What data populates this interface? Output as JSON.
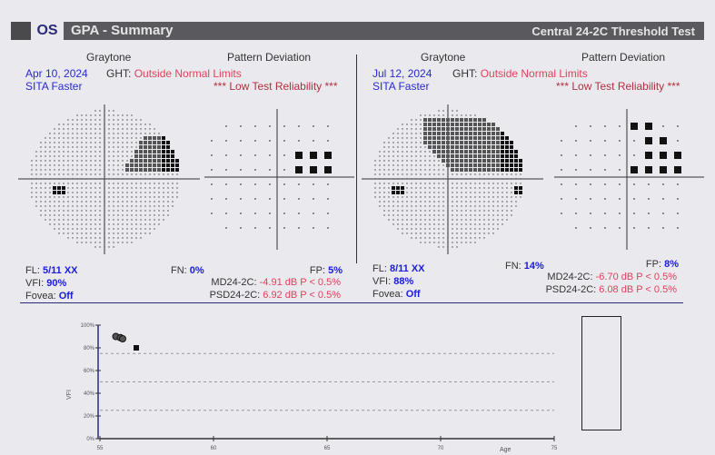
{
  "header": {
    "eye": "OS",
    "title": "GPA - Summary",
    "test": "Central 24-2C Threshold Test"
  },
  "exams": [
    {
      "graytone_label": "Graytone",
      "pd_label": "Pattern Deviation",
      "date": "Apr 10, 2024",
      "strategy": "SITA Faster",
      "ght_label": "GHT:",
      "ght": "Outside Normal Limits",
      "reliability": "*** Low Test Reliability ***",
      "fl_label": "FL:",
      "fl": "5/11 XX",
      "vfi_label": "VFI:",
      "vfi": "90%",
      "fovea_label": "Fovea:",
      "fovea": "Off",
      "fn_label": "FN:",
      "fn": "0%",
      "fp_label": "FP:",
      "fp": "5%",
      "md_label": "MD24-2C:",
      "md": "-4.91 dB P < 0.5%",
      "psd_label": "PSD24-2C:",
      "psd": "6.92 dB P < 0.5%"
    },
    {
      "graytone_label": "Graytone",
      "pd_label": "Pattern Deviation",
      "date": "Jul 12, 2024",
      "strategy": "SITA Faster",
      "ght_label": "GHT:",
      "ght": "Outside Normal Limits",
      "reliability": "*** Low Test Reliability ***",
      "fl_label": "FL:",
      "fl": "8/11 XX",
      "vfi_label": "VFI:",
      "vfi": "88%",
      "fovea_label": "Fovea:",
      "fovea": "Off",
      "fn_label": "FN:",
      "fn": "14%",
      "fp_label": "FP:",
      "fp": "8%",
      "md_label": "MD24-2C:",
      "md": "-6.70 dB P < 0.5%",
      "psd_label": "PSD24-2C:",
      "psd": "6.08 dB P < 0.5%"
    }
  ],
  "chart_data": {
    "type": "scatter",
    "xlabel": "Age",
    "ylabel": "VFI",
    "xlim": [
      55,
      75
    ],
    "ylim": [
      0,
      100
    ],
    "xticks": [
      "55",
      "60",
      "65",
      "70",
      "75"
    ],
    "yticks": [
      "0%",
      "20%",
      "40%",
      "60%",
      "80%",
      "100%"
    ],
    "points": [
      {
        "x": 55.7,
        "y": 90,
        "marker": "circle"
      },
      {
        "x": 55.9,
        "y": 89,
        "marker": "circle"
      },
      {
        "x": 56.0,
        "y": 88,
        "marker": "circle"
      },
      {
        "x": 56.6,
        "y": 80,
        "marker": "square"
      }
    ]
  }
}
